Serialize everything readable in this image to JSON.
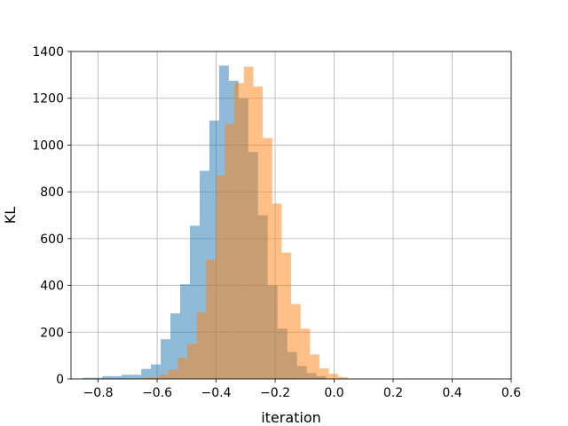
{
  "chart_data": {
    "type": "bar",
    "title": "",
    "xlabel": "iteration",
    "ylabel": "KL",
    "xlim": [
      -0.892,
      0.6
    ],
    "ylim": [
      0,
      1400
    ],
    "grid": true,
    "xticks": [
      -0.8,
      -0.6,
      -0.4,
      -0.2,
      0.0,
      0.2,
      0.4,
      0.6
    ],
    "xtick_labels": [
      "−0.8",
      "−0.6",
      "−0.4",
      "−0.2",
      "0.0",
      "0.2",
      "0.4",
      "0.6"
    ],
    "yticks": [
      0,
      200,
      400,
      600,
      800,
      1000,
      1200,
      1400
    ],
    "ytick_labels": [
      "0",
      "200",
      "400",
      "600",
      "800",
      "1000",
      "1200",
      "1400"
    ],
    "series": [
      {
        "color": "#1f77b4",
        "alpha": 0.5,
        "bins": [
          {
            "x0": -0.852,
            "x1": -0.819,
            "count": 5
          },
          {
            "x0": -0.819,
            "x1": -0.786,
            "count": 5
          },
          {
            "x0": -0.786,
            "x1": -0.753,
            "count": 12
          },
          {
            "x0": -0.753,
            "x1": -0.72,
            "count": 12
          },
          {
            "x0": -0.72,
            "x1": -0.687,
            "count": 18
          },
          {
            "x0": -0.687,
            "x1": -0.654,
            "count": 18
          },
          {
            "x0": -0.654,
            "x1": -0.621,
            "count": 43
          },
          {
            "x0": -0.621,
            "x1": -0.588,
            "count": 62
          },
          {
            "x0": -0.588,
            "x1": -0.555,
            "count": 170
          },
          {
            "x0": -0.555,
            "x1": -0.522,
            "count": 280
          },
          {
            "x0": -0.522,
            "x1": -0.489,
            "count": 405
          },
          {
            "x0": -0.489,
            "x1": -0.456,
            "count": 655
          },
          {
            "x0": -0.456,
            "x1": -0.423,
            "count": 890
          },
          {
            "x0": -0.423,
            "x1": -0.39,
            "count": 1105
          },
          {
            "x0": -0.39,
            "x1": -0.357,
            "count": 1340
          },
          {
            "x0": -0.357,
            "x1": -0.324,
            "count": 1275
          },
          {
            "x0": -0.324,
            "x1": -0.291,
            "count": 1200
          },
          {
            "x0": -0.291,
            "x1": -0.258,
            "count": 970
          },
          {
            "x0": -0.258,
            "x1": -0.225,
            "count": 700
          },
          {
            "x0": -0.225,
            "x1": -0.192,
            "count": 400
          },
          {
            "x0": -0.192,
            "x1": -0.159,
            "count": 215
          },
          {
            "x0": -0.159,
            "x1": -0.126,
            "count": 115
          },
          {
            "x0": -0.126,
            "x1": -0.093,
            "count": 55
          },
          {
            "x0": -0.093,
            "x1": -0.06,
            "count": 25
          },
          {
            "x0": -0.06,
            "x1": -0.027,
            "count": 12
          }
        ]
      },
      {
        "color": "#ff7f0e",
        "alpha": 0.5,
        "bins": [
          {
            "x0": -0.658,
            "x1": -0.626,
            "count": 5
          },
          {
            "x0": -0.626,
            "x1": -0.594,
            "count": 8
          },
          {
            "x0": -0.594,
            "x1": -0.562,
            "count": 18
          },
          {
            "x0": -0.562,
            "x1": -0.53,
            "count": 40
          },
          {
            "x0": -0.53,
            "x1": -0.498,
            "count": 90
          },
          {
            "x0": -0.498,
            "x1": -0.466,
            "count": 150
          },
          {
            "x0": -0.466,
            "x1": -0.434,
            "count": 285
          },
          {
            "x0": -0.434,
            "x1": -0.402,
            "count": 510
          },
          {
            "x0": -0.402,
            "x1": -0.37,
            "count": 870
          },
          {
            "x0": -0.37,
            "x1": -0.338,
            "count": 1090
          },
          {
            "x0": -0.338,
            "x1": -0.306,
            "count": 1265
          },
          {
            "x0": -0.306,
            "x1": -0.274,
            "count": 1335
          },
          {
            "x0": -0.274,
            "x1": -0.242,
            "count": 1250
          },
          {
            "x0": -0.242,
            "x1": -0.21,
            "count": 1030
          },
          {
            "x0": -0.21,
            "x1": -0.178,
            "count": 750
          },
          {
            "x0": -0.178,
            "x1": -0.146,
            "count": 540
          },
          {
            "x0": -0.146,
            "x1": -0.114,
            "count": 320
          },
          {
            "x0": -0.114,
            "x1": -0.082,
            "count": 215
          },
          {
            "x0": -0.082,
            "x1": -0.05,
            "count": 105
          },
          {
            "x0": -0.05,
            "x1": -0.018,
            "count": 45
          },
          {
            "x0": -0.018,
            "x1": 0.014,
            "count": 22
          },
          {
            "x0": 0.014,
            "x1": 0.046,
            "count": 8
          }
        ]
      }
    ]
  }
}
